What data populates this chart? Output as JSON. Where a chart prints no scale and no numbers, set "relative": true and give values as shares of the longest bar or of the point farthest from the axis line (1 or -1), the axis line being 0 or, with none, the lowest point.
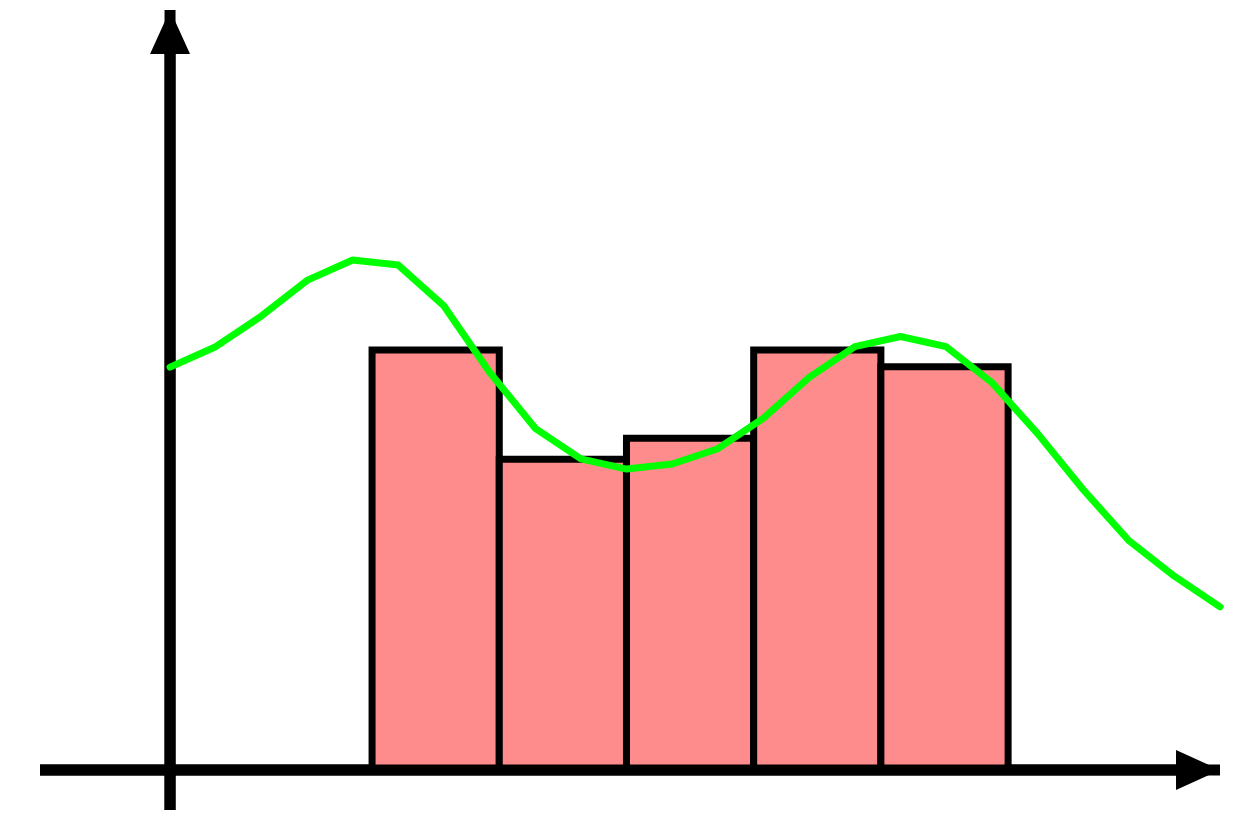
{
  "chart_data": [
    {
      "type": "bar",
      "relative": true,
      "categories": [
        null,
        null,
        null,
        null,
        null
      ],
      "values": [
        1.0,
        0.74,
        0.79,
        1.0,
        0.96
      ],
      "color": "#ff8c8c"
    },
    {
      "type": "line",
      "relative": true,
      "categories": [
        null,
        null,
        null,
        null,
        null,
        null,
        null,
        null,
        null,
        null,
        null,
        null,
        null,
        null,
        null,
        null,
        null,
        null,
        null,
        null,
        null,
        null,
        null,
        null
      ],
      "series": [
        {
          "color": "#00ff00",
          "values": [
            0.79,
            0.83,
            0.89,
            0.96,
            1.0,
            0.99,
            0.91,
            0.78,
            0.67,
            0.61,
            0.59,
            0.6,
            0.63,
            0.69,
            0.77,
            0.83,
            0.85,
            0.83,
            0.76,
            0.66,
            0.55,
            0.45,
            0.38,
            0.32
          ]
        }
      ]
    }
  ]
}
